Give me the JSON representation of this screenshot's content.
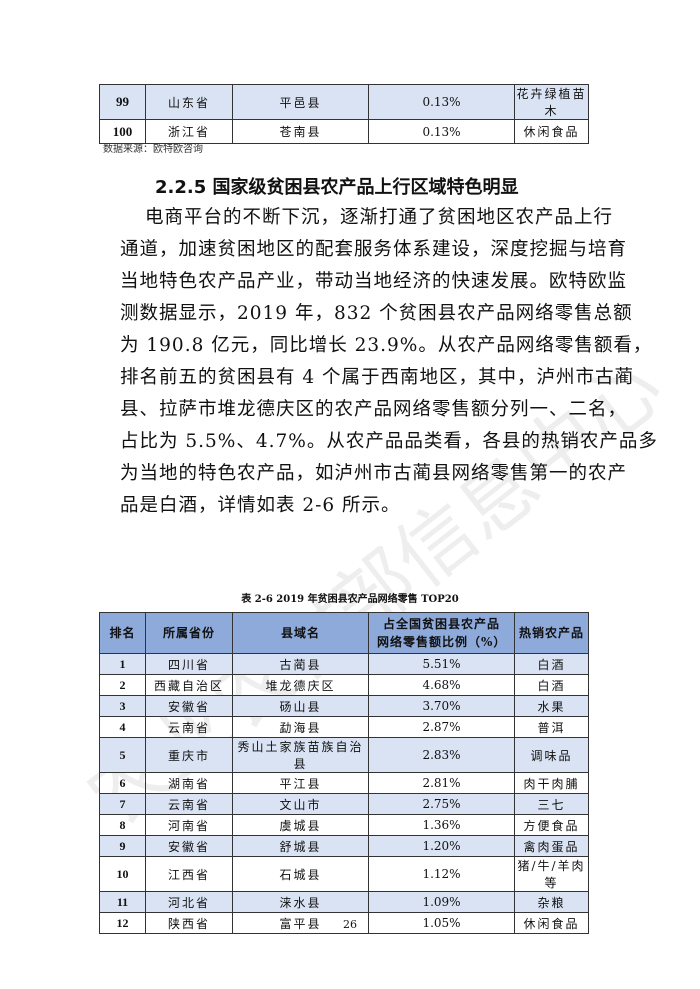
{
  "top_table": {
    "rows": [
      [
        "99",
        "山东省",
        "平邑县",
        "0.13%",
        "花卉绿植苗木"
      ],
      [
        "100",
        "浙江省",
        "苍南县",
        "0.13%",
        "休闲食品"
      ]
    ]
  },
  "source_note": "数据来源：欧特欧咨询",
  "heading": "2.2.5 国家级贫困县农产品上行区域特色明显",
  "body_lines": [
    "电商平台的不断下沉，逐渐打通了贫困地区农产品上行",
    "通道，加速贫困地区的配套服务体系建设，深度挖掘与培育",
    "当地特色农产品产业，带动当地经济的快速发展。欧特欧监",
    "测数据显示，2019 年，832 个贫困县农产品网络零售总额",
    "为 190.8 亿元，同比增长 23.9%。从农产品网络零售额看，",
    "排名前五的贫困县有 4 个属于西南地区，其中，泸州市古蔺",
    "县、拉萨市堆龙德庆区的农产品网络零售额分列一、二名，",
    "占比为 5.5%、4.7%。从农产品品类看，各县的热销农产品多",
    "为当地的特色农产品，如泸州市古蔺县网络零售第一的农产",
    "品是白酒，详情如表 2-6 所示。"
  ],
  "table_caption": "表 2-6 2019 年贫困县农产品网络零售 TOP20",
  "main_table": {
    "headers": [
      "排名",
      "所属省份",
      "县域名",
      "占全国贫困县农产品网络零售额比例（%）",
      "热销农产品"
    ],
    "rows": [
      [
        "1",
        "四川省",
        "古蔺县",
        "5.51%",
        "白酒"
      ],
      [
        "2",
        "西藏自治区",
        "堆龙德庆区",
        "4.68%",
        "白酒"
      ],
      [
        "3",
        "安徽省",
        "砀山县",
        "3.70%",
        "水果"
      ],
      [
        "4",
        "云南省",
        "勐海县",
        "2.87%",
        "普洱"
      ],
      [
        "5",
        "重庆市",
        "秀山土家族苗族自治县",
        "2.83%",
        "调味品"
      ],
      [
        "6",
        "湖南省",
        "平江县",
        "2.81%",
        "肉干肉脯"
      ],
      [
        "7",
        "云南省",
        "文山市",
        "2.75%",
        "三七"
      ],
      [
        "8",
        "河南省",
        "虞城县",
        "1.36%",
        "方便食品"
      ],
      [
        "9",
        "安徽省",
        "舒城县",
        "1.20%",
        "禽肉蛋品"
      ],
      [
        "10",
        "江西省",
        "石城县",
        "1.12%",
        "猪/牛/羊肉等"
      ],
      [
        "11",
        "河北省",
        "涞水县",
        "1.09%",
        "杂粮"
      ],
      [
        "12",
        "陕西省",
        "富平县",
        "1.05%",
        "休闲食品"
      ]
    ]
  },
  "page_number": "26",
  "watermark": "农业农村部信息中心",
  "colors": {
    "header_bg": "#8eaadb",
    "alt_row_bg": "#dae3f3"
  }
}
